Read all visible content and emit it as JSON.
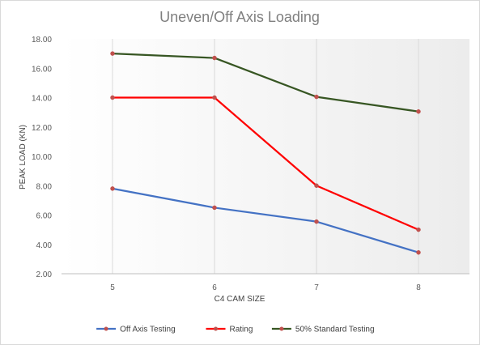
{
  "chart_data": {
    "type": "line",
    "title": "Uneven/Off Axis Loading",
    "xlabel": "C4 CAM SIZE",
    "ylabel": "PEAK LOAD (KN)",
    "categories": [
      "5",
      "6",
      "7",
      "8"
    ],
    "ylim": [
      2,
      18
    ],
    "yticks": [
      "2.00",
      "4.00",
      "6.00",
      "8.00",
      "10.00",
      "12.00",
      "14.00",
      "16.00",
      "18.00"
    ],
    "grid": "vertical",
    "legend_position": "bottom",
    "series": [
      {
        "name": "Off Axis Testing",
        "color": "#4472c4",
        "values": [
          7.8,
          6.5,
          5.55,
          3.45
        ]
      },
      {
        "name": "Rating",
        "color": "#ff0000",
        "values": [
          14.0,
          14.0,
          8.0,
          5.0
        ]
      },
      {
        "name": "50% Standard Testing",
        "color": "#375623",
        "values": [
          17.0,
          16.7,
          14.05,
          13.05
        ]
      }
    ],
    "marker_color": "#c0504d"
  }
}
